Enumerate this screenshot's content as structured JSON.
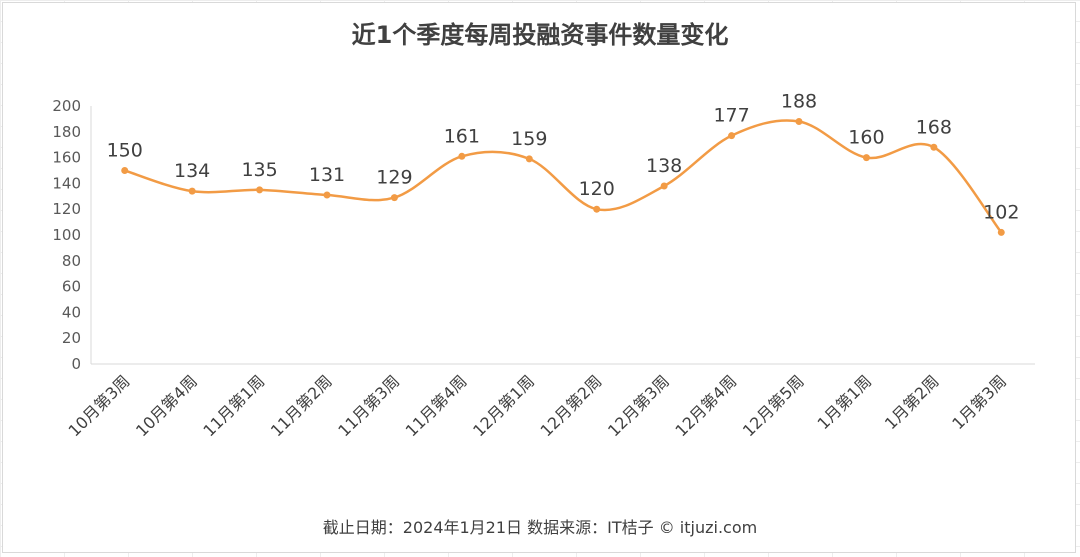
{
  "chart_data": {
    "type": "line",
    "title": "近1个季度每周投融资事件数量变化",
    "categories": [
      "10月第3周",
      "10月第4周",
      "11月第1周",
      "11月第2周",
      "11月第3周",
      "11月第4周",
      "12月第1周",
      "12月第2周",
      "12月第3周",
      "12月第4周",
      "12月第5周",
      "1月第1周",
      "1月第2周",
      "1月第3周"
    ],
    "series": [
      {
        "values": [
          150,
          134,
          135,
          131,
          129,
          161,
          159,
          120,
          138,
          177,
          188,
          160,
          168,
          102
        ]
      }
    ],
    "ylim": [
      0,
      200
    ],
    "yticks": [
      0,
      20,
      40,
      60,
      80,
      100,
      120,
      140,
      160,
      180,
      200
    ],
    "grid": false,
    "data_labels": true,
    "smooth": true,
    "line_color": "#f29b45",
    "xlabel": "",
    "ylabel": ""
  },
  "footer": "截止日期：2024年1月21日    数据来源：IT桔子 © itjuzi.com"
}
